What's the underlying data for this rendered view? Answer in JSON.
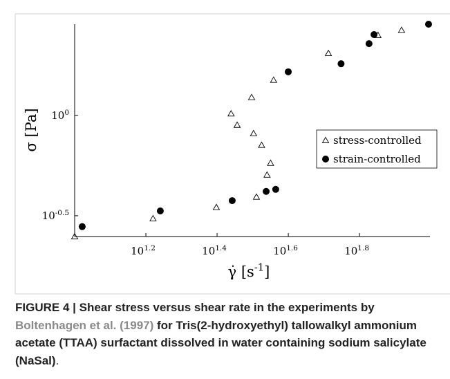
{
  "chart_data": {
    "type": "scatter",
    "xlabel": "γ̇ [s^-1]",
    "ylabel": "σ [Pa]",
    "xscale": "log",
    "yscale": "log",
    "xlim": [
      10,
      99.5
    ],
    "ylim": [
      0.249,
      2.85
    ],
    "xticks": [
      {
        "value": 15.85,
        "label": "10^1.2"
      },
      {
        "value": 25.12,
        "label": "10^1.4"
      },
      {
        "value": 39.81,
        "label": "10^1.6"
      },
      {
        "value": 63.1,
        "label": "10^1.8"
      }
    ],
    "yticks": [
      {
        "value": 0.3162,
        "label": "10^-0.5"
      },
      {
        "value": 1,
        "label": "10^0"
      }
    ],
    "legend": "right",
    "series": [
      {
        "name": "stress-controlled",
        "marker": "triangle",
        "color": "#000000",
        "x": [
          10,
          16.6,
          25.0,
          32.4,
          34.7,
          35.5,
          33.5,
          31.8,
          28.6,
          27.5,
          31.4,
          36.2,
          51.6,
          71.1,
          82.8
        ],
        "values": [
          0.249,
          0.306,
          0.348,
          0.392,
          0.505,
          0.578,
          0.711,
          0.813,
          0.895,
          1.02,
          1.23,
          1.5,
          2.04,
          2.51,
          2.66
        ]
      },
      {
        "name": "strain-controlled",
        "marker": "circle",
        "color": "#000000",
        "x": [
          10.5,
          17.4,
          27.7,
          34.5,
          36.7,
          39.8,
          56.0,
          67.1,
          69.3,
          98.6
        ],
        "values": [
          0.279,
          0.334,
          0.376,
          0.418,
          0.428,
          1.65,
          1.81,
          2.28,
          2.53,
          2.85
        ]
      }
    ]
  },
  "caption": {
    "lead": "FIGURE 4 | Shear stress versus shear rate in the experiments by ",
    "reference": "Boltenhagen et al. (1997)",
    "rest": " for Tris(2-hydroxyethyl) tallowalkyl ammonium acetate (TTAA) surfactant dissolved in water containing sodium salicylate (NaSal)",
    "end": "."
  }
}
